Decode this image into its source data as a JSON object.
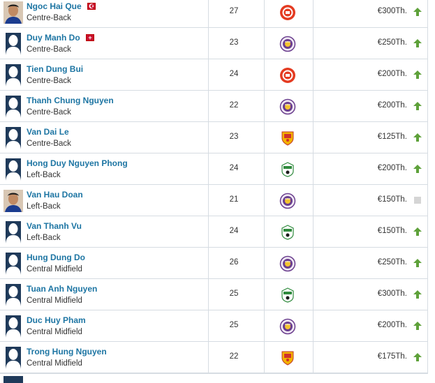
{
  "players": [
    {
      "name": "Ngoc Hai Que",
      "position": "Centre-Back",
      "age": "27",
      "club_icon": "red-circle-crest-icon",
      "value": "€300Th.",
      "trend": "up",
      "avatar": "photo",
      "flag": "red-flag-icon"
    },
    {
      "name": "Duy Manh Do",
      "position": "Centre-Back",
      "age": "23",
      "club_icon": "purple-crest-icon",
      "value": "€250Th.",
      "trend": "up",
      "avatar": "silhouette",
      "flag": "cross-flag-icon"
    },
    {
      "name": "Tien Dung Bui",
      "position": "Centre-Back",
      "age": "24",
      "club_icon": "red-circle-crest-icon",
      "value": "€200Th.",
      "trend": "up",
      "avatar": "silhouette"
    },
    {
      "name": "Thanh Chung Nguyen",
      "position": "Centre-Back",
      "age": "22",
      "club_icon": "purple-crest-icon",
      "value": "€200Th.",
      "trend": "up",
      "avatar": "silhouette"
    },
    {
      "name": "Van Dai Le",
      "position": "Centre-Back",
      "age": "23",
      "club_icon": "yellow-shield-crest-icon",
      "value": "€125Th.",
      "trend": "up",
      "avatar": "silhouette"
    },
    {
      "name": "Hong Duy Nguyen Phong",
      "position": "Left-Back",
      "age": "24",
      "club_icon": "green-white-crest-icon",
      "value": "€200Th.",
      "trend": "up",
      "avatar": "silhouette"
    },
    {
      "name": "Van Hau Doan",
      "position": "Left-Back",
      "age": "21",
      "club_icon": "purple-crest-icon",
      "value": "€150Th.",
      "trend": "none",
      "avatar": "photo"
    },
    {
      "name": "Van Thanh Vu",
      "position": "Left-Back",
      "age": "24",
      "club_icon": "green-white-crest-icon",
      "value": "€150Th.",
      "trend": "up",
      "avatar": "silhouette"
    },
    {
      "name": "Hung Dung Do",
      "position": "Central Midfield",
      "age": "26",
      "club_icon": "purple-crest-icon",
      "value": "€250Th.",
      "trend": "up",
      "avatar": "silhouette"
    },
    {
      "name": "Tuan Anh Nguyen",
      "position": "Central Midfield",
      "age": "25",
      "club_icon": "green-white-crest-icon",
      "value": "€300Th.",
      "trend": "up",
      "avatar": "silhouette"
    },
    {
      "name": "Duc Huy Pham",
      "position": "Central Midfield",
      "age": "25",
      "club_icon": "purple-crest-icon",
      "value": "€200Th.",
      "trend": "up",
      "avatar": "silhouette"
    },
    {
      "name": "Trong Hung Nguyen",
      "position": "Central Midfield",
      "age": "22",
      "club_icon": "yellow-shield-crest-icon",
      "value": "€175Th.",
      "trend": "up",
      "avatar": "silhouette"
    }
  ],
  "colors": {
    "link": "#1d75a3",
    "trend_up": "#5ea13a",
    "trend_none": "#d5d5d5",
    "silhouette": "#1f3a5a",
    "border": "#d6dce2"
  }
}
